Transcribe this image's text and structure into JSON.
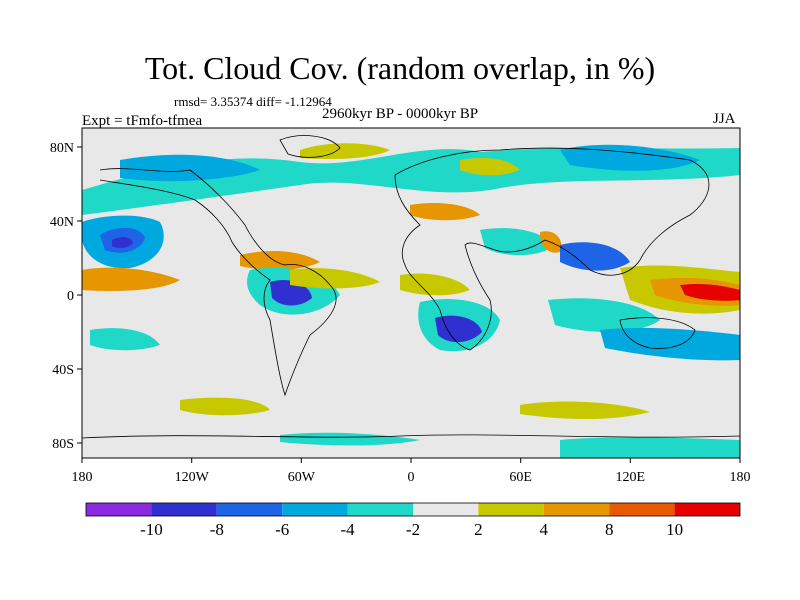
{
  "header": {
    "title": "Tot. Cloud Cov. (random overlap, in %)",
    "stats": "rmsd= 3.35374 diff= -1.12964",
    "experiment": "Expt = tFmfo-tfmea",
    "period": "2960kyr BP - 0000kyr BP",
    "season": "JJA"
  },
  "axes": {
    "x_ticks": [
      "180",
      "120W",
      "60W",
      "0",
      "60E",
      "120E",
      "180"
    ],
    "y_ticks": [
      "80N",
      "40N",
      "0",
      "40S",
      "80S"
    ]
  },
  "colorbar": {
    "labels": [
      "-10",
      "-8",
      "-6",
      "-4",
      "-2",
      "2",
      "4",
      "8",
      "10"
    ],
    "colors": [
      "#8a2be2",
      "#3030d0",
      "#1e64e6",
      "#00a8e0",
      "#20d8c8",
      "#e8e8e8",
      "#c8c800",
      "#e69600",
      "#e85a00",
      "#e60000"
    ]
  },
  "chart_data": {
    "type": "heatmap",
    "projection": "cylindrical-equidistant",
    "x_range": [
      -180,
      180
    ],
    "y_range": [
      -90,
      90
    ],
    "background_color": "#e8e8e8",
    "levels": [
      -10,
      -8,
      -6,
      -4,
      -2,
      2,
      4,
      8,
      10
    ]
  }
}
